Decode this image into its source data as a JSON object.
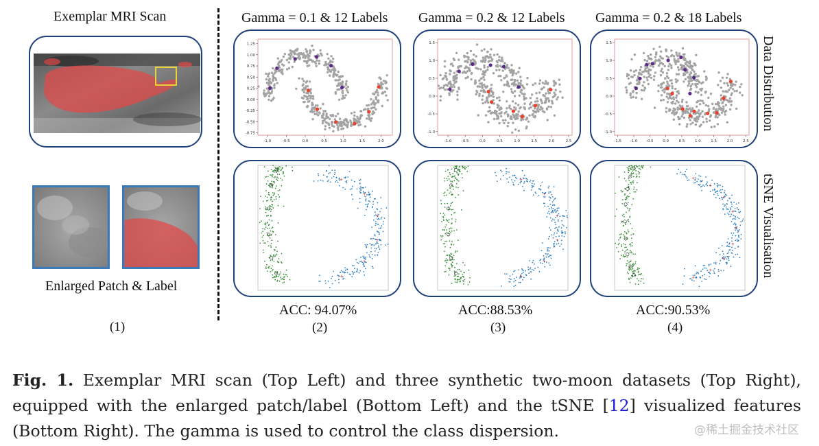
{
  "left": {
    "title": "Exemplar MRI Scan",
    "patch_label": "Enlarged Patch & Label",
    "panel_number": "(1)"
  },
  "columns": [
    {
      "title": "Gamma = 0.1 & 12 Labels",
      "acc": "ACC: 94.07%",
      "number": "(2)"
    },
    {
      "title": "Gamma = 0.2 & 12 Labels",
      "acc": "ACC:88.53%",
      "number": "(3)"
    },
    {
      "title": "Gamma = 0.2 & 18 Labels",
      "acc": "ACC:90.53%",
      "number": "(4)"
    }
  ],
  "row_labels": {
    "top": "Data Distribution",
    "bottom": "tSNE Visualisation"
  },
  "caption": {
    "prefix": "Fig. 1.",
    "text_before_cite": " Exemplar MRI scan (Top Left) and three synthetic two-moon datasets (Top Right), equipped with the enlarged patch/label (Bottom Left) and the tSNE [",
    "cite": "12",
    "text_after_cite": "] visualized features (Bottom Right). The gamma is used to control the class dispersion."
  },
  "watermark": "@稀土掘金技术社区",
  "colors": {
    "panel_border": "#1f3f7a",
    "moon_points": "#a3a3a3",
    "labeled_class_a": "#5b2a86",
    "labeled_class_b": "#e8412b",
    "tsne_class_a": "#3a8f3a",
    "tsne_class_b": "#2f7fc1",
    "mask": "#e04a4a",
    "citation": "#1a1adb"
  },
  "chart_data": [
    {
      "type": "scatter",
      "title": "Gamma = 0.1 & 12 Labels",
      "xticks": [
        "-1.0",
        "-0.5",
        "0.0",
        "0.5",
        "1.0",
        "1.5",
        "2.0"
      ],
      "yticks": [
        "1.25",
        "1.00",
        "0.75",
        "0.50",
        "0.25",
        "0.00",
        "-0.25",
        "-0.50",
        "-0.75"
      ],
      "xlim": [
        -1.25,
        2.3
      ],
      "ylim": [
        -0.8,
        1.35
      ]
    },
    {
      "type": "scatter",
      "title": "Gamma = 0.2 & 12 Labels",
      "xticks": [
        "-1.0",
        "-0.5",
        "0.0",
        "0.5",
        "1.0",
        "1.5",
        "2.0",
        "2.5"
      ],
      "yticks": [
        "1.5",
        "1.0",
        "0.5",
        "0.0",
        "-0.5",
        "-1.0"
      ],
      "xlim": [
        -1.3,
        2.6
      ],
      "ylim": [
        -1.1,
        1.6
      ]
    },
    {
      "type": "scatter",
      "title": "Gamma = 0.2 & 18 Labels",
      "xticks": [
        "-1.5",
        "-1.0",
        "-0.5",
        "0.0",
        "0.5",
        "1.0",
        "1.5",
        "2.0",
        "2.5"
      ],
      "yticks": [
        "1.5",
        "1.0",
        "0.5",
        "0.0",
        "-0.5",
        "-1.0"
      ],
      "xlim": [
        -1.6,
        2.6
      ],
      "ylim": [
        -1.1,
        1.6
      ]
    }
  ]
}
